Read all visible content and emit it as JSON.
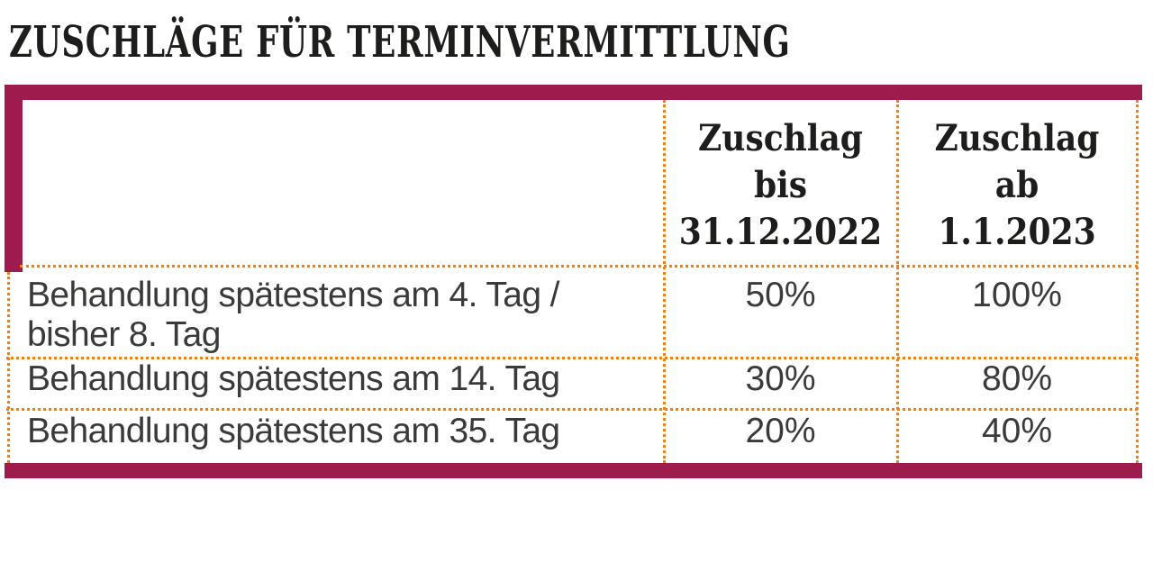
{
  "title": "ZUSCHLÄGE FÜR TERMINVERMITTLUNG",
  "colors": {
    "accent_maroon": "#9e1b4d",
    "grid_dot_orange": "#e8821f",
    "body_text": "#3a3a38",
    "heading_text": "#1d1d1b",
    "background": "#ffffff"
  },
  "table": {
    "headers": {
      "label_col": "",
      "col2": "Zuschlag bis\n31.12.2022",
      "col3": "Zuschlag ab\n1.1.2023"
    },
    "rows": [
      {
        "label": "Behandlung spätestens am 4. Tag /\nbisher 8. Tag",
        "zuschlag_bis": "50%",
        "zuschlag_ab": "100%"
      },
      {
        "label": "Behandlung spätestens am 14. Tag",
        "zuschlag_bis": "30%",
        "zuschlag_ab": "80%"
      },
      {
        "label": "Behandlung spätestens am 35. Tag",
        "zuschlag_bis": "20%",
        "zuschlag_ab": "40%"
      }
    ]
  }
}
